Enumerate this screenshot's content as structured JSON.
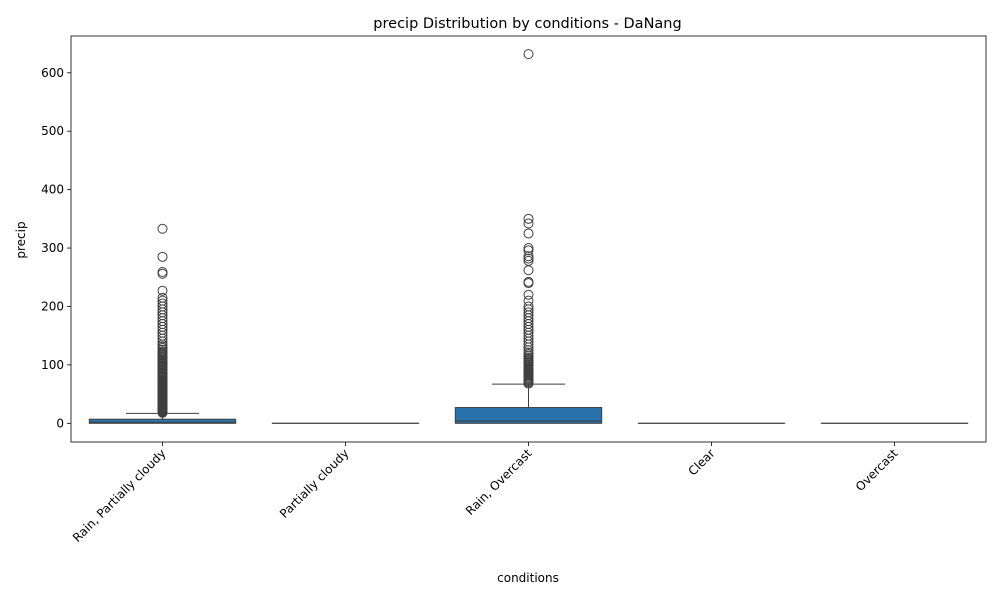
{
  "chart_data": {
    "type": "box",
    "title": "precip Distribution by conditions - DaNang",
    "xlabel": "conditions",
    "ylabel": "precip",
    "ylim": [
      -32,
      663
    ],
    "yticks": [
      0,
      100,
      200,
      300,
      400,
      500,
      600
    ],
    "grid": false,
    "legend": "none",
    "box_color": "#2a72ad",
    "categories": [
      "Rain, Partially cloudy",
      "Partially cloudy",
      "Rain, Overcast",
      "Clear",
      "Overcast"
    ],
    "boxes": [
      {
        "category": "Rain, Partially cloudy",
        "whisker_low": 0,
        "q1": 0,
        "median": 1.5,
        "q3": 7,
        "whisker_high": 17,
        "outliers": [
          18,
          19,
          20,
          21,
          22,
          23,
          24,
          25,
          26,
          27,
          28,
          29,
          30,
          31,
          32,
          33,
          34,
          35,
          36,
          37,
          38,
          39,
          40,
          41,
          42,
          43,
          44,
          45,
          46,
          47,
          48,
          49,
          50,
          51,
          52,
          53,
          54,
          55,
          56,
          57,
          58,
          59,
          60,
          61,
          62,
          63,
          64,
          65,
          66,
          67,
          68,
          69,
          70,
          71,
          72,
          73,
          74,
          75,
          77,
          79,
          81,
          83,
          85,
          87,
          89,
          91,
          93,
          95,
          97,
          99,
          101,
          103,
          105,
          107,
          109,
          111,
          113,
          115,
          117,
          119,
          121,
          123,
          126,
          129,
          132,
          135,
          140,
          145,
          150,
          155,
          160,
          165,
          170,
          175,
          180,
          185,
          190,
          195,
          200,
          205,
          210,
          215,
          227,
          256,
          259,
          285,
          333
        ]
      },
      {
        "category": "Partially cloudy",
        "whisker_low": 0,
        "q1": 0,
        "median": 0,
        "q3": 0,
        "whisker_high": 0,
        "outliers": []
      },
      {
        "category": "Rain, Overcast",
        "whisker_low": 0,
        "q1": 0,
        "median": 4,
        "q3": 27,
        "whisker_high": 67,
        "outliers": [
          68,
          70,
          72,
          74,
          76,
          78,
          80,
          82,
          84,
          86,
          88,
          90,
          92,
          94,
          96,
          98,
          100,
          102,
          104,
          106,
          108,
          110,
          112,
          115,
          118,
          121,
          125,
          130,
          135,
          140,
          145,
          150,
          155,
          160,
          165,
          170,
          175,
          180,
          185,
          190,
          195,
          200,
          210,
          220,
          240,
          242,
          262,
          278,
          282,
          286,
          296,
          300,
          325,
          342,
          350,
          632
        ]
      },
      {
        "category": "Clear",
        "whisker_low": 0,
        "q1": 0,
        "median": 0,
        "q3": 0,
        "whisker_high": 0,
        "outliers": []
      },
      {
        "category": "Overcast",
        "whisker_low": 0,
        "q1": 0,
        "median": 0,
        "q3": 0,
        "whisker_high": 0,
        "outliers": []
      }
    ]
  }
}
